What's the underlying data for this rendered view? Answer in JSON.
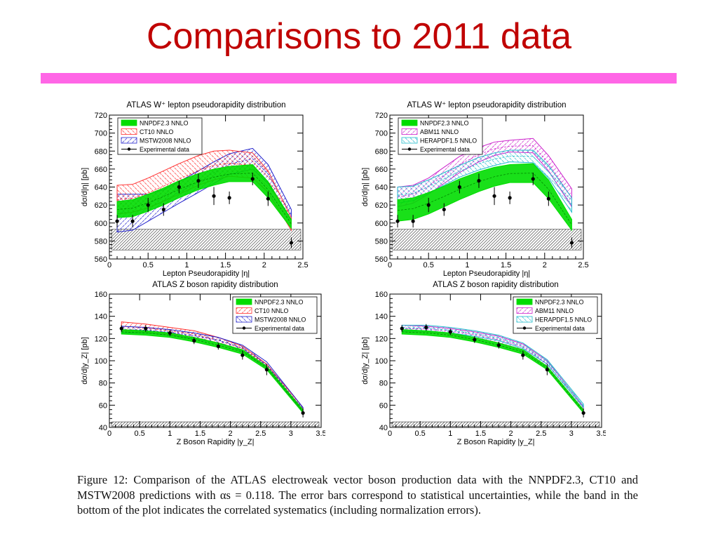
{
  "slide": {
    "title": "Comparisons to 2011 data"
  },
  "caption": {
    "text": "Figure 12:  Comparison of the ATLAS electroweak vector boson production data with the NNPDF2.3, CT10 and MSTW2008 predictions with αs = 0.118.  The error bars correspond to statistical uncertainties, while the band in the bottom of the plot indicates the correlated systematics (including normalization errors)."
  },
  "colors": {
    "nnpdf": "#00dd00",
    "ct10": "#ff3030",
    "mstw": "#2222cc",
    "abm": "#cc22cc",
    "hera": "#22bbcc",
    "title": "#c00000",
    "bar": "#ff66e6"
  },
  "chart_data": [
    {
      "type": "line",
      "title": "ATLAS W⁺ lepton pseudorapidity distribution",
      "xlabel": "Lepton Pseudorapidity |η|",
      "ylabel": "dσ/d|η| [pb]",
      "xlim": [
        0,
        2.5
      ],
      "ylim": [
        560,
        720
      ],
      "xticks": [
        "0",
        "0.5",
        "1",
        "1.5",
        "2",
        "2.5"
      ],
      "yticks": [
        "560",
        "580",
        "600",
        "620",
        "640",
        "660",
        "680",
        "700",
        "720"
      ],
      "legend": [
        "NNPDF2.3 NNLO",
        "CT10 NNLO",
        "MSTW2008 NNLO",
        "Experimental data"
      ],
      "legend_position": "top-left",
      "data": {
        "x": [
          0.1,
          0.3,
          0.5,
          0.7,
          0.9,
          1.15,
          1.35,
          1.55,
          1.85,
          2.05,
          2.35
        ],
        "y": [
          602,
          602,
          620,
          615,
          640,
          647,
          630,
          628,
          649,
          627,
          578
        ],
        "err": [
          7,
          7,
          8,
          7,
          7,
          8,
          10,
          7,
          7,
          8,
          6
        ]
      },
      "syst_band": [
        570,
        593
      ],
      "bands": [
        {
          "name": "MSTW2008 NNLO",
          "x": [
            0.1,
            0.3,
            0.5,
            0.7,
            0.9,
            1.15,
            1.35,
            1.55,
            1.85,
            2.05,
            2.35
          ],
          "low": [
            590,
            592,
            602,
            612,
            622,
            634,
            644,
            654,
            660,
            644,
            603
          ],
          "high": [
            632,
            632,
            632,
            637,
            646,
            658,
            668,
            677,
            683,
            665,
            615
          ]
        },
        {
          "name": "CT10 NNLO",
          "x": [
            0.1,
            0.3,
            0.5,
            0.7,
            0.9,
            1.15,
            1.35,
            1.55,
            1.85,
            2.05,
            2.35
          ],
          "low": [
            610,
            612,
            617,
            624,
            632,
            642,
            648,
            652,
            650,
            634,
            592
          ],
          "high": [
            642,
            643,
            650,
            658,
            666,
            675,
            680,
            681,
            678,
            658,
            606
          ]
        },
        {
          "name": "NNPDF2.3 NNLO",
          "x": [
            0.1,
            0.3,
            0.5,
            0.7,
            0.9,
            1.15,
            1.35,
            1.55,
            1.85,
            2.05,
            2.35
          ],
          "low": [
            606,
            607,
            613,
            620,
            628,
            637,
            642,
            646,
            646,
            628,
            594
          ],
          "high": [
            624,
            626,
            632,
            639,
            647,
            655,
            660,
            663,
            665,
            646,
            604
          ]
        }
      ]
    },
    {
      "type": "line",
      "title": "ATLAS W⁺ lepton pseudorapidity distribution",
      "xlabel": "Lepton Pseudorapidity |η|",
      "ylabel": "dσ/d|η| [pb]",
      "xlim": [
        0,
        2.5
      ],
      "ylim": [
        560,
        720
      ],
      "xticks": [
        "0",
        "0.5",
        "1",
        "1.5",
        "2",
        "2.5"
      ],
      "yticks": [
        "560",
        "580",
        "600",
        "620",
        "640",
        "660",
        "680",
        "700",
        "720"
      ],
      "legend": [
        "NNPDF2.3 NNLO",
        "ABM11 NNLO",
        "HERAPDF1.5 NNLO",
        "Experimental data"
      ],
      "legend_position": "top-left",
      "data": {
        "x": [
          0.1,
          0.3,
          0.5,
          0.7,
          0.9,
          1.15,
          1.35,
          1.55,
          1.85,
          2.05,
          2.35
        ],
        "y": [
          602,
          602,
          620,
          615,
          640,
          647,
          630,
          628,
          649,
          627,
          578
        ],
        "err": [
          7,
          7,
          8,
          7,
          7,
          8,
          10,
          7,
          7,
          8,
          6
        ]
      },
      "syst_band": [
        570,
        593
      ],
      "bands": [
        {
          "name": "ABM11 NNLO",
          "x": [
            0.1,
            0.3,
            0.5,
            0.7,
            0.9,
            1.15,
            1.35,
            1.55,
            1.85,
            2.05,
            2.35
          ],
          "low": [
            618,
            622,
            632,
            644,
            656,
            668,
            675,
            679,
            678,
            658,
            618
          ],
          "high": [
            640,
            642,
            650,
            662,
            674,
            684,
            690,
            692,
            694,
            675,
            638
          ]
        },
        {
          "name": "HERAPDF1.5 NNLO",
          "x": [
            0.1,
            0.3,
            0.5,
            0.7,
            0.9,
            1.15,
            1.35,
            1.55,
            1.85,
            2.05,
            2.35
          ],
          "low": [
            622,
            625,
            633,
            642,
            651,
            659,
            664,
            668,
            667,
            650,
            612
          ],
          "high": [
            640,
            641,
            648,
            656,
            664,
            673,
            678,
            681,
            681,
            664,
            628
          ]
        },
        {
          "name": "NNPDF2.3 NNLO",
          "x": [
            0.1,
            0.3,
            0.5,
            0.7,
            0.9,
            1.15,
            1.35,
            1.55,
            1.85,
            2.05,
            2.35
          ],
          "low": [
            602,
            604,
            610,
            618,
            626,
            635,
            641,
            645,
            645,
            627,
            592
          ],
          "high": [
            626,
            628,
            634,
            641,
            649,
            657,
            662,
            665,
            666,
            648,
            604
          ]
        }
      ]
    },
    {
      "type": "line",
      "title": "ATLAS Z boson rapidity distribution",
      "xlabel": "Z Boson Rapidity |y_Z|",
      "ylabel": "dσ/d|y_Z| [pb]",
      "xlim": [
        0,
        3.5
      ],
      "ylim": [
        40,
        160
      ],
      "xticks": [
        "0",
        "0.5",
        "1",
        "1.5",
        "2",
        "2.5",
        "3",
        "3.5"
      ],
      "yticks": [
        "40",
        "60",
        "80",
        "100",
        "120",
        "140",
        "160"
      ],
      "legend": [
        "NNPDF2.3 NNLO",
        "CT10 NNLO",
        "MSTW2008 NNLO",
        "Experimental data"
      ],
      "legend_position": "top-right",
      "data": {
        "x": [
          0.2,
          0.6,
          1.0,
          1.4,
          1.8,
          2.2,
          2.6,
          3.2
        ],
        "y": [
          129,
          129,
          125,
          118,
          113,
          105,
          92,
          53
        ],
        "err": [
          3,
          3,
          3,
          3,
          3,
          4,
          5,
          4
        ]
      },
      "syst_band": [
        41,
        45
      ],
      "bands": [
        {
          "name": "CT10 NNLO",
          "x": [
            0.2,
            0.6,
            1.0,
            1.4,
            1.8,
            2.2,
            2.6,
            3.2
          ],
          "low": [
            127,
            126,
            124,
            121,
            116,
            109,
            94,
            55
          ],
          "high": [
            135,
            133,
            130,
            127,
            121,
            113,
            97,
            58
          ]
        },
        {
          "name": "MSTW2008 NNLO",
          "x": [
            0.2,
            0.6,
            1.0,
            1.4,
            1.8,
            2.2,
            2.6,
            3.2
          ],
          "low": [
            125,
            125,
            123,
            120,
            116,
            109,
            94,
            54
          ],
          "high": [
            131,
            130,
            128,
            125,
            121,
            114,
            99,
            58
          ]
        },
        {
          "name": "NNPDF2.3 NNLO",
          "x": [
            0.2,
            0.6,
            1.0,
            1.4,
            1.8,
            2.2,
            2.6,
            3.2
          ],
          "low": [
            124,
            123,
            121,
            117,
            112,
            106,
            92,
            53
          ],
          "high": [
            128,
            127,
            125,
            121,
            116,
            110,
            95,
            56
          ]
        }
      ]
    },
    {
      "type": "line",
      "title": "ATLAS Z boson rapidity distribution",
      "xlabel": "Z Boson Rapidity |y_Z|",
      "ylabel": "dσ/d|y_Z| [pb]",
      "xlim": [
        0,
        3.5
      ],
      "ylim": [
        40,
        160
      ],
      "xticks": [
        "0",
        "0.5",
        "1",
        "1.5",
        "2",
        "2.5",
        "3",
        "3.5"
      ],
      "yticks": [
        "40",
        "60",
        "80",
        "100",
        "120",
        "140",
        "160"
      ],
      "legend": [
        "NNPDF2.3 NNLO",
        "ABM11 NNLO",
        "HERAPDF1.5 NNLO",
        "Experimental data"
      ],
      "legend_position": "top-right",
      "data": {
        "x": [
          0.2,
          0.6,
          1.0,
          1.4,
          1.8,
          2.2,
          2.6,
          3.2
        ],
        "y": [
          129,
          130,
          126,
          119,
          114,
          105,
          92,
          53
        ],
        "err": [
          3,
          3,
          3,
          3,
          3,
          4,
          5,
          4
        ]
      },
      "syst_band": [
        41,
        45
      ],
      "bands": [
        {
          "name": "ABM11 NNLO",
          "x": [
            0.2,
            0.6,
            1.0,
            1.4,
            1.8,
            2.2,
            2.6,
            3.2
          ],
          "low": [
            126,
            126,
            124,
            121,
            116,
            110,
            95,
            56
          ],
          "high": [
            132,
            131,
            129,
            126,
            122,
            115,
            100,
            59
          ]
        },
        {
          "name": "HERAPDF1.5 NNLO",
          "x": [
            0.2,
            0.6,
            1.0,
            1.4,
            1.8,
            2.2,
            2.6,
            3.2
          ],
          "low": [
            127,
            127,
            125,
            122,
            118,
            111,
            97,
            58
          ],
          "high": [
            132,
            132,
            130,
            127,
            123,
            116,
            101,
            61
          ]
        },
        {
          "name": "NNPDF2.3 NNLO",
          "x": [
            0.2,
            0.6,
            1.0,
            1.4,
            1.8,
            2.2,
            2.6,
            3.2
          ],
          "low": [
            124,
            123,
            121,
            117,
            112,
            106,
            92,
            53
          ],
          "high": [
            128,
            127,
            125,
            121,
            116,
            110,
            95,
            56
          ]
        }
      ]
    }
  ]
}
